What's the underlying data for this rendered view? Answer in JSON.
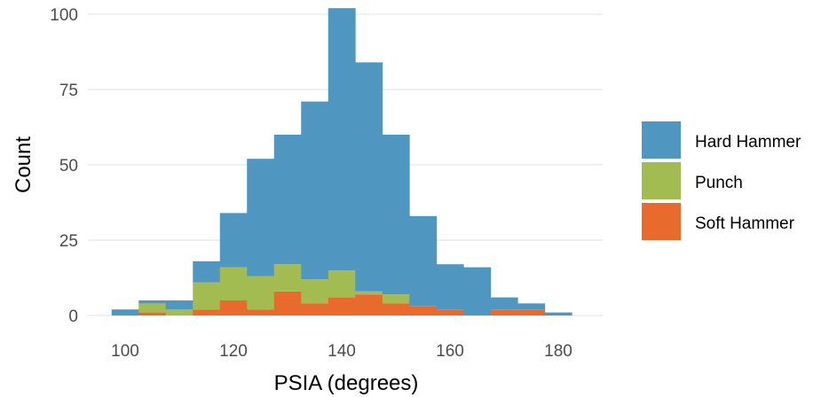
{
  "chart_data": {
    "type": "bar",
    "stacked": true,
    "xlabel": "PSIA (degrees)",
    "ylabel": "Count",
    "xlim": [
      95,
      185
    ],
    "ylim": [
      0,
      102
    ],
    "x_ticks": [
      "100",
      "120",
      "140",
      "160",
      "180"
    ],
    "y_ticks": [
      "0",
      "25",
      "50",
      "75",
      "100"
    ],
    "grid": "horizontal",
    "legend_position": "right",
    "bin_width": 5,
    "bin_centers": [
      100,
      105,
      110,
      115,
      120,
      125,
      130,
      135,
      140,
      145,
      150,
      155,
      160,
      165,
      170,
      175,
      180
    ],
    "series": [
      {
        "name": "Hard Hammer",
        "color": "#4f97c1",
        "values": [
          2,
          1,
          3,
          7,
          18,
          39,
          43,
          59,
          87,
          76,
          53,
          30,
          15,
          16,
          4,
          2,
          1
        ]
      },
      {
        "name": "Punch",
        "color": "#a2bc52",
        "values": [
          0,
          3,
          2,
          9,
          11,
          11,
          9,
          8,
          9,
          1,
          3,
          0,
          0,
          0,
          0,
          0,
          0
        ]
      },
      {
        "name": "Soft Hammer",
        "color": "#e86a2c",
        "values": [
          0,
          1,
          0,
          2,
          5,
          2,
          8,
          4,
          6,
          7,
          4,
          3,
          2,
          0,
          2,
          2,
          0
        ]
      }
    ],
    "stack_order_bottom_to_top": [
      "Soft Hammer",
      "Punch",
      "Hard Hammer"
    ]
  }
}
